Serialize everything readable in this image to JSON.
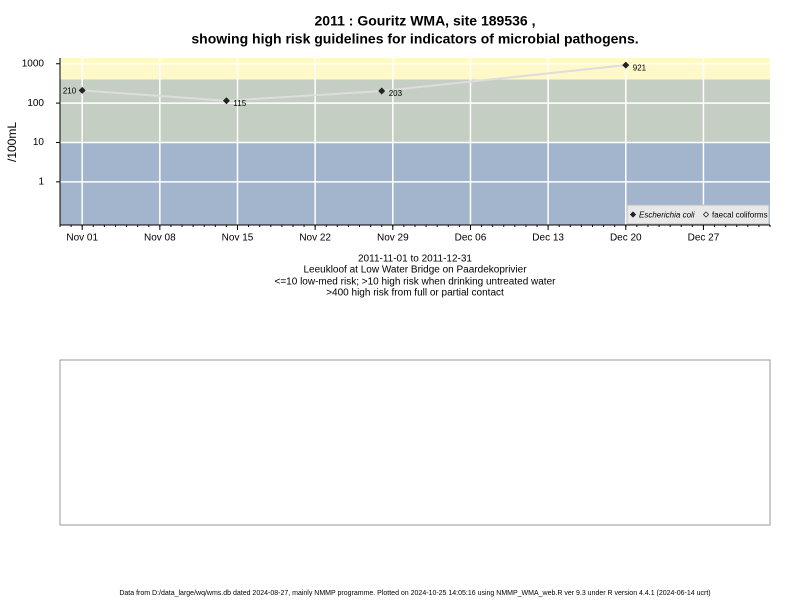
{
  "chart_data": {
    "type": "line",
    "title": [
      "2011 : Gouritz WMA, site 189536 ,",
      "showing high risk guidelines for indicators of microbial pathogens."
    ],
    "subtitle": [
      "2011-11-01 to 2011-12-31",
      "Leeukloof at Low Water Bridge on Paardekoprivier",
      "<=10 low-med risk; >10 high risk when drinking untreated water",
      ">400 high risk from full or partial contact"
    ],
    "y_label": "/100mL",
    "log_y": true,
    "grid": true,
    "legend": "bottom-right",
    "ylim": [
      0.08,
      1400
    ],
    "yticks": [
      1,
      10,
      100,
      1000
    ],
    "xlim": [
      "2011-10-30",
      "2012-01-02"
    ],
    "xticks": [
      {
        "value": "2011-11-01",
        "label": "Nov 01"
      },
      {
        "value": "2011-11-08",
        "label": "Nov 08"
      },
      {
        "value": "2011-11-15",
        "label": "Nov 15"
      },
      {
        "value": "2011-11-22",
        "label": "Nov 22"
      },
      {
        "value": "2011-11-29",
        "label": "Nov 29"
      },
      {
        "value": "2011-12-06",
        "label": "Dec 06"
      },
      {
        "value": "2011-12-13",
        "label": "Dec 13"
      },
      {
        "value": "2011-12-20",
        "label": "Dec 20"
      },
      {
        "value": "2011-12-27",
        "label": "Dec 27"
      }
    ],
    "band_thresholds": [
      10,
      400
    ],
    "band_colors": [
      "#a3b5cc",
      "#c4cec2",
      "#fff8c9"
    ],
    "x": [
      "2011-11-01",
      "2011-11-14",
      "2011-11-28",
      "2011-12-20"
    ],
    "series": [
      {
        "name": "Escherichia coli",
        "color": "#222222",
        "line_color": "#dddddd",
        "values": [
          210,
          115,
          203,
          921
        ]
      },
      {
        "name": "faecal coliforms",
        "color": "#222222",
        "line_color": "#dddddd",
        "values": [
          null,
          null,
          null,
          null
        ]
      }
    ],
    "footer": "Data from D:/data_large/wq/wms.db dated 2024-08-27, mainly NMMP programme. Plotted on 2024-10-25 14:05:16 using NMMP_WMA_web.R ver 9.3 under R version 4.4.1 (2024-06-14 ucrt)"
  }
}
